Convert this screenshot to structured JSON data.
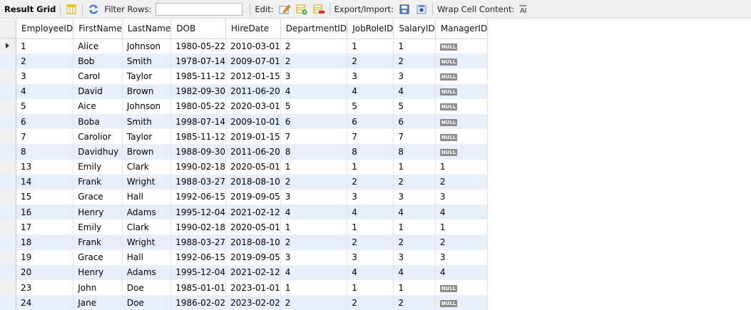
{
  "toolbar": {
    "result_grid": "Result Grid",
    "filter_rows": "Filter Rows:",
    "filter_value": "",
    "edit": "Edit:",
    "export_import": "Export/Import:",
    "wrap_cell_content": "Wrap Cell Content:"
  },
  "columns": [
    "EmployeeID",
    "FirstName",
    "LastName",
    "DOB",
    "HireDate",
    "DepartmentID",
    "JobRoleID",
    "SalaryID",
    "ManagerID"
  ],
  "rows": [
    [
      "1",
      "Alice",
      "Johnson",
      "1980-05-22",
      "2010-03-01",
      "2",
      "1",
      "1",
      "NULL"
    ],
    [
      "2",
      "Bob",
      "Smith",
      "1978-07-14",
      "2009-07-01",
      "2",
      "2",
      "2",
      "NULL"
    ],
    [
      "3",
      "Carol",
      "Taylor",
      "1985-11-12",
      "2012-01-15",
      "3",
      "3",
      "3",
      "NULL"
    ],
    [
      "4",
      "David",
      "Brown",
      "1982-09-30",
      "2011-06-20",
      "4",
      "4",
      "4",
      "NULL"
    ],
    [
      "5",
      "Aice",
      "Johnson",
      "1980-05-22",
      "2020-03-01",
      "5",
      "5",
      "5",
      "NULL"
    ],
    [
      "6",
      "Boba",
      "Smith",
      "1998-07-14",
      "2009-10-01",
      "6",
      "6",
      "6",
      "NULL"
    ],
    [
      "7",
      "Carolior",
      "Taylor",
      "1985-11-12",
      "2019-01-15",
      "7",
      "7",
      "7",
      "NULL"
    ],
    [
      "8",
      "Davidhuy",
      "Brown",
      "1988-09-30",
      "2011-06-20",
      "8",
      "8",
      "8",
      "NULL"
    ],
    [
      "13",
      "Emily",
      "Clark",
      "1990-02-18",
      "2020-05-01",
      "1",
      "1",
      "1",
      "1"
    ],
    [
      "14",
      "Frank",
      "Wright",
      "1988-03-27",
      "2018-08-10",
      "2",
      "2",
      "2",
      "2"
    ],
    [
      "15",
      "Grace",
      "Hall",
      "1992-06-15",
      "2019-09-05",
      "3",
      "3",
      "3",
      "3"
    ],
    [
      "16",
      "Henry",
      "Adams",
      "1995-12-04",
      "2021-02-12",
      "4",
      "4",
      "4",
      "4"
    ],
    [
      "17",
      "Emily",
      "Clark",
      "1990-02-18",
      "2020-05-01",
      "1",
      "1",
      "1",
      "1"
    ],
    [
      "18",
      "Frank",
      "Wright",
      "1988-03-27",
      "2018-08-10",
      "2",
      "2",
      "2",
      "2"
    ],
    [
      "19",
      "Grace",
      "Hall",
      "1992-06-15",
      "2019-09-05",
      "3",
      "3",
      "3",
      "3"
    ],
    [
      "20",
      "Henry",
      "Adams",
      "1995-12-04",
      "2021-02-12",
      "4",
      "4",
      "4",
      "4"
    ],
    [
      "23",
      "John",
      "Doe",
      "1985-01-01",
      "2023-01-01",
      "1",
      "1",
      "1",
      "NULL"
    ],
    [
      "24",
      "Jane",
      "Doe",
      "1986-02-02",
      "2023-02-02",
      "2",
      "2",
      "2",
      "NULL"
    ]
  ],
  "colors": {
    "alt_row": "#e8effb",
    "null_badge": "#8c8c8c"
  }
}
